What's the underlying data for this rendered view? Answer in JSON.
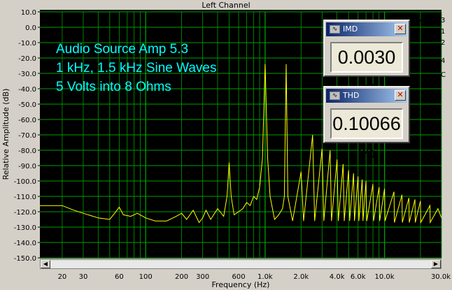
{
  "window": {
    "title": "Left Channel"
  },
  "annotation": {
    "line1": "Audio Source Amp 5.3",
    "line2": "1 kHz, 1.5 kHz Sine Waves",
    "line3": "5 Volts into 8 Ohms"
  },
  "meters": {
    "imd": {
      "title": "IMD",
      "value": "0.0030 %"
    },
    "thd": {
      "title": "THD",
      "value": "0.10066 %"
    }
  },
  "right_panel": {
    "items": [
      "3",
      "1",
      "2",
      "4",
      "C"
    ]
  },
  "icons": {
    "meter_icon": "waveform-icon",
    "close_icon": "close-icon",
    "generator_icon": "sine-wave-icon"
  },
  "colors": {
    "plot_bg": "#000000",
    "grid": "#00a000",
    "trace": "#ffff00",
    "annotation": "#00ffff"
  },
  "chart_data": {
    "type": "line",
    "title": "Left Channel",
    "xlabel": "Frequency (Hz)",
    "ylabel": "Relative Amplitude (dB)",
    "x_scale": "log",
    "xlim": [
      13,
      30000
    ],
    "ylim": [
      -150,
      10
    ],
    "grid": true,
    "x_tick_labels": [
      "20",
      "30",
      "60",
      "100",
      "200",
      "300",
      "600",
      "1.0k",
      "2.0k",
      "4.0k",
      "6.0k",
      "10.0k",
      "30.0k"
    ],
    "x_tick_values": [
      20,
      30,
      60,
      100,
      200,
      300,
      600,
      1000,
      2000,
      4000,
      6000,
      10000,
      30000
    ],
    "y_tick_labels": [
      "10.0",
      "0.0",
      "-10.0",
      "-20.0",
      "-30.0",
      "-40.0",
      "-50.0",
      "-60.0",
      "-70.0",
      "-80.0",
      "-90.0",
      "-100.0",
      "-110.0",
      "-120.0",
      "-130.0",
      "-140.0",
      "-150.0"
    ],
    "y_tick_values": [
      10,
      0,
      -10,
      -20,
      -30,
      -40,
      -50,
      -60,
      -70,
      -80,
      -90,
      -100,
      -110,
      -120,
      -130,
      -140,
      -150
    ],
    "series": [
      {
        "values_xy": [
          [
            13,
            -116
          ],
          [
            20,
            -116
          ],
          [
            25,
            -119
          ],
          [
            30,
            -121
          ],
          [
            40,
            -124
          ],
          [
            50,
            -125
          ],
          [
            55,
            -121
          ],
          [
            60,
            -117
          ],
          [
            65,
            -122
          ],
          [
            75,
            -123
          ],
          [
            85,
            -121
          ],
          [
            100,
            -124
          ],
          [
            120,
            -126
          ],
          [
            150,
            -126
          ],
          [
            180,
            -123
          ],
          [
            200,
            -121
          ],
          [
            220,
            -125
          ],
          [
            250,
            -119
          ],
          [
            280,
            -127
          ],
          [
            300,
            -124
          ],
          [
            320,
            -119
          ],
          [
            350,
            -125
          ],
          [
            400,
            -118
          ],
          [
            450,
            -123
          ],
          [
            480,
            -110
          ],
          [
            500,
            -88
          ],
          [
            520,
            -110
          ],
          [
            550,
            -122
          ],
          [
            600,
            -120
          ],
          [
            650,
            -118
          ],
          [
            700,
            -114
          ],
          [
            750,
            -116
          ],
          [
            800,
            -110
          ],
          [
            850,
            -112
          ],
          [
            900,
            -104
          ],
          [
            950,
            -85
          ],
          [
            1000,
            -24
          ],
          [
            1050,
            -85
          ],
          [
            1100,
            -110
          ],
          [
            1200,
            -125
          ],
          [
            1300,
            -122
          ],
          [
            1400,
            -118
          ],
          [
            1450,
            -110
          ],
          [
            1500,
            -24
          ],
          [
            1550,
            -110
          ],
          [
            1700,
            -126
          ],
          [
            2000,
            -94
          ],
          [
            2100,
            -126
          ],
          [
            2500,
            -70
          ],
          [
            2600,
            -126
          ],
          [
            3000,
            -79
          ],
          [
            3100,
            -126
          ],
          [
            3500,
            -80
          ],
          [
            3600,
            -126
          ],
          [
            4000,
            -86
          ],
          [
            4100,
            -126
          ],
          [
            4500,
            -89
          ],
          [
            4600,
            -126
          ],
          [
            5000,
            -93
          ],
          [
            5100,
            -126
          ],
          [
            5500,
            -95
          ],
          [
            5600,
            -126
          ],
          [
            6000,
            -97
          ],
          [
            6100,
            -126
          ],
          [
            6500,
            -99
          ],
          [
            6600,
            -126
          ],
          [
            7000,
            -100
          ],
          [
            7100,
            -126
          ],
          [
            8000,
            -102
          ],
          [
            8100,
            -126
          ],
          [
            9000,
            -104
          ],
          [
            9100,
            -126
          ],
          [
            10000,
            -105
          ],
          [
            10100,
            -126
          ],
          [
            12000,
            -107
          ],
          [
            12100,
            -127
          ],
          [
            14000,
            -109
          ],
          [
            14100,
            -127
          ],
          [
            16000,
            -111
          ],
          [
            16100,
            -127
          ],
          [
            18000,
            -112
          ],
          [
            18100,
            -127
          ],
          [
            20000,
            -113
          ],
          [
            20100,
            -127
          ],
          [
            24000,
            -116
          ],
          [
            24100,
            -127
          ],
          [
            28000,
            -118
          ],
          [
            30000,
            -124
          ]
        ]
      }
    ]
  }
}
